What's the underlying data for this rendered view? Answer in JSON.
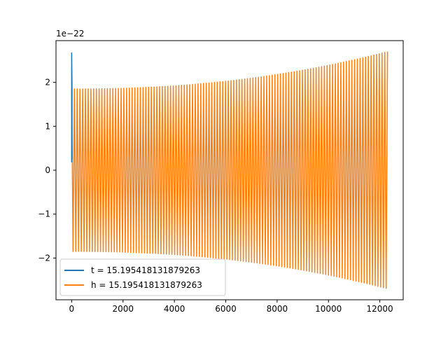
{
  "chart_data": {
    "type": "line",
    "title": "",
    "xlabel": "",
    "ylabel": "",
    "xlim": [
      -610,
      12910
    ],
    "ylim": [
      -2.95,
      2.95
    ],
    "y_scale_label": "1e−22",
    "x_ticks": [
      0,
      2000,
      4000,
      6000,
      8000,
      10000,
      12000
    ],
    "x_tick_labels": [
      "0",
      "2000",
      "4000",
      "6000",
      "8000",
      "10000",
      "12000"
    ],
    "y_ticks": [
      -2,
      -1,
      0,
      1,
      2
    ],
    "y_tick_labels": [
      "−2",
      "−1",
      "0",
      "1",
      "2"
    ],
    "grid": false,
    "legend_position": "lower-left",
    "series": [
      {
        "name": "t = 15.195418131879263",
        "color": "#1f77b4",
        "style": "spike",
        "points": [
          [
            0,
            0.18
          ],
          [
            0,
            2.68
          ],
          [
            15,
            1.85
          ],
          [
            15,
            0.25
          ]
        ]
      },
      {
        "name": "h = 15.195418131879263",
        "color": "#ff7f0e",
        "style": "chirp",
        "x_range": [
          0,
          12300
        ],
        "start_amplitude": 1.85,
        "end_amplitude": 2.7,
        "oscillations": 230
      }
    ]
  }
}
